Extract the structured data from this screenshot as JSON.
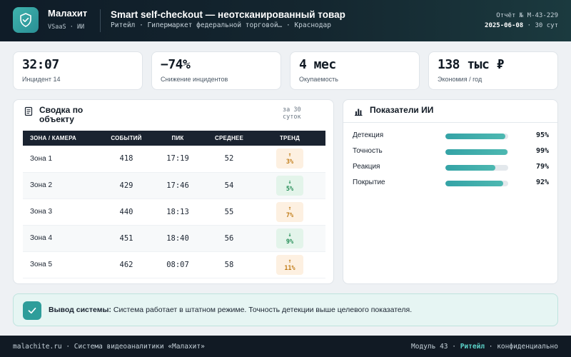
{
  "header": {
    "brand_name": "Малахит",
    "brand_sub": "VSaaS · ИИ",
    "title": "Smart self-checkout — неотсканированный товар",
    "subtitle_parts": [
      "Ритейл",
      "Гипермаркет федеральной торговой…",
      "Краснодар"
    ],
    "report_number": "Отчёт № M-43-229",
    "report_date": "2025-06-08",
    "report_period": "· 30 сут"
  },
  "kpis": [
    {
      "value": "32:07",
      "label": "Инцидент 14"
    },
    {
      "value": "−74%",
      "label": "Снижение инцидентов"
    },
    {
      "value": "4 мес",
      "label": "Окупаемость"
    },
    {
      "value": "138 тыс ₽",
      "label": "Экономия / год"
    }
  ],
  "summary": {
    "title": "Сводка по объекту",
    "period": "за 30 суток",
    "columns": [
      "ЗОНА / КАМЕРА",
      "СОБЫТИЙ",
      "ПИК",
      "СРЕДНЕЕ",
      "ТРЕНД"
    ],
    "rows": [
      {
        "zone": "Зона 1",
        "events": "418",
        "peak": "17:19",
        "avg": "52",
        "trend": "3%",
        "direction": "up"
      },
      {
        "zone": "Зона 2",
        "events": "429",
        "peak": "17:46",
        "avg": "54",
        "trend": "5%",
        "direction": "down"
      },
      {
        "zone": "Зона 3",
        "events": "440",
        "peak": "18:13",
        "avg": "55",
        "trend": "7%",
        "direction": "up"
      },
      {
        "zone": "Зона 4",
        "events": "451",
        "peak": "18:40",
        "avg": "56",
        "trend": "9%",
        "direction": "down"
      },
      {
        "zone": "Зона 5",
        "events": "462",
        "peak": "08:07",
        "avg": "58",
        "trend": "11%",
        "direction": "up"
      }
    ]
  },
  "ai_metrics": {
    "title": "Показатели ИИ",
    "items": [
      {
        "label": "Детекция",
        "value": "95%",
        "fraction": 0.95
      },
      {
        "label": "Точность",
        "value": "99%",
        "fraction": 0.99
      },
      {
        "label": "Реакция",
        "value": "79%",
        "fraction": 0.79
      },
      {
        "label": "Покрытие",
        "value": "92%",
        "fraction": 0.92
      }
    ]
  },
  "alert": {
    "label": "Вывод системы:",
    "text": "Система работает в штатном режиме. Точность детекции выше целевого показателя."
  },
  "footer": {
    "left": "malachite.ru · Система видеоаналитики «Малахит»",
    "module": "Модуль 43 ·",
    "sector": "Ритейл",
    "confidential": "· конфиденциально"
  },
  "colors": {
    "accent": "#2e9d9a",
    "header_bg": "#0f1c28",
    "trend_up": "#c07a14",
    "trend_down": "#1f8a52"
  },
  "icons": {
    "logo": "shield-check-icon",
    "summary": "document-icon",
    "metrics": "bar-chart-icon",
    "alert": "check-icon"
  }
}
